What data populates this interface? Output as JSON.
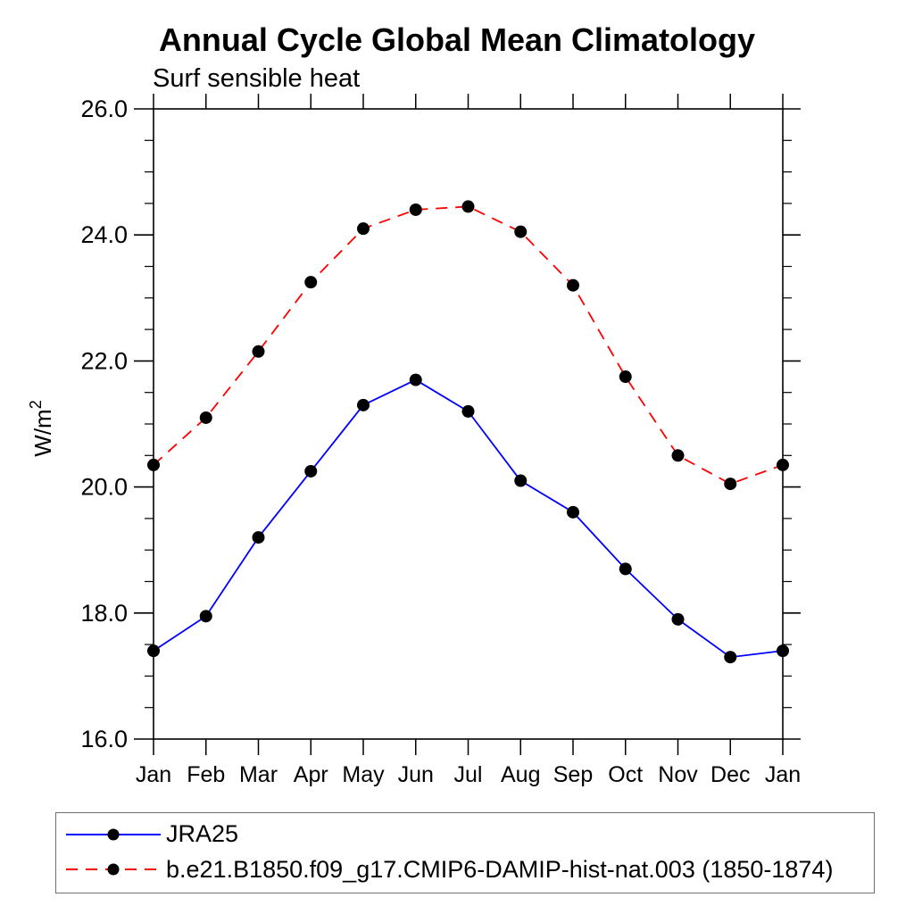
{
  "chart_data": {
    "type": "line",
    "title": "Annual Cycle Global Mean Climatology",
    "subtitle": "Surf sensible heat",
    "ylabel_base": "W/m",
    "ylabel_sup": "2",
    "categories": [
      "Jan",
      "Feb",
      "Mar",
      "Apr",
      "May",
      "Jun",
      "Jul",
      "Aug",
      "Sep",
      "Oct",
      "Nov",
      "Dec",
      "Jan"
    ],
    "series": [
      {
        "id": "jra25",
        "name": "JRA25",
        "color": "#0000ff",
        "line_style": "solid",
        "marker": "filled-circle",
        "marker_color": "#000000",
        "values": [
          17.4,
          17.95,
          19.2,
          20.25,
          21.3,
          21.7,
          21.2,
          20.1,
          19.6,
          18.7,
          17.9,
          17.3,
          17.4
        ]
      },
      {
        "id": "cmip6-damip-hist-nat-003",
        "name": "b.e21.B1850.f09_g17.CMIP6-DAMIP-hist-nat.003 (1850-1874)",
        "color": "#ff0000",
        "line_style": "dashed",
        "marker": "filled-circle",
        "marker_color": "#000000",
        "values": [
          20.35,
          21.1,
          22.15,
          23.25,
          24.1,
          24.4,
          24.45,
          24.05,
          23.2,
          21.75,
          20.5,
          20.05,
          20.35
        ]
      }
    ],
    "ylim": [
      16.0,
      26.0
    ],
    "ytick_major_step": 2.0,
    "ytick_minor_step": 0.5,
    "ytick_label_format": "one-decimal",
    "xtick_labels_every_month": true,
    "grid": false,
    "legend_position": "bottom-left-box",
    "frame_color": "#000000",
    "background_color": "#ffffff"
  }
}
